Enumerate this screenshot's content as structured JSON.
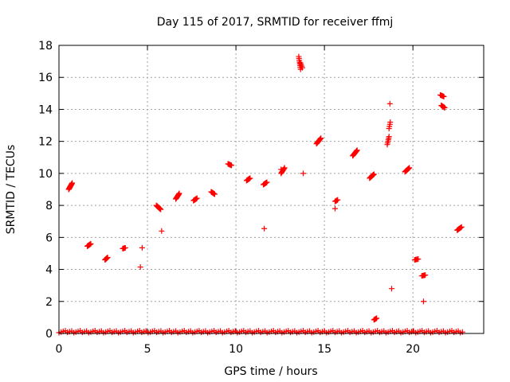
{
  "chart_data": {
    "type": "scatter",
    "title": "Day 115 of 2017, SRMTID for receiver ffmj",
    "xlabel": "GPS time / hours",
    "ylabel": "SRMTID / TECUs",
    "xlim": [
      0,
      24
    ],
    "ylim": [
      0,
      18
    ],
    "xticks": [
      0,
      5,
      10,
      15,
      20
    ],
    "yticks": [
      0,
      2,
      4,
      6,
      8,
      10,
      12,
      14,
      16,
      18
    ],
    "grid": true,
    "marker": "plus",
    "color": "#ff0000",
    "baseline": {
      "y": 0.05,
      "x_start": 0.0,
      "x_end": 22.8,
      "step": 0.12
    },
    "clusters": [
      {
        "x0": 0.55,
        "x1": 0.75,
        "y0": 9.0,
        "y1": 9.4,
        "n": 14
      },
      {
        "x0": 1.6,
        "x1": 1.8,
        "y0": 5.45,
        "y1": 5.6,
        "n": 8
      },
      {
        "x0": 2.6,
        "x1": 2.75,
        "y0": 4.6,
        "y1": 4.75,
        "n": 7
      },
      {
        "x0": 3.6,
        "x1": 3.75,
        "y0": 5.3,
        "y1": 5.35,
        "n": 5
      },
      {
        "x0": 5.5,
        "x1": 5.75,
        "y0": 8.0,
        "y1": 7.75,
        "n": 12
      },
      {
        "x0": 6.6,
        "x1": 6.8,
        "y0": 8.4,
        "y1": 8.75,
        "n": 10
      },
      {
        "x0": 7.6,
        "x1": 7.8,
        "y0": 8.3,
        "y1": 8.45,
        "n": 7
      },
      {
        "x0": 8.6,
        "x1": 8.8,
        "y0": 8.85,
        "y1": 8.7,
        "n": 7
      },
      {
        "x0": 9.55,
        "x1": 9.75,
        "y0": 10.6,
        "y1": 10.5,
        "n": 7
      },
      {
        "x0": 10.6,
        "x1": 10.8,
        "y0": 9.55,
        "y1": 9.7,
        "n": 7
      },
      {
        "x0": 11.55,
        "x1": 11.75,
        "y0": 9.3,
        "y1": 9.45,
        "n": 7
      },
      {
        "x0": 12.55,
        "x1": 12.75,
        "y0": 10.0,
        "y1": 10.35,
        "n": 7
      },
      {
        "x0": 13.55,
        "x1": 13.65,
        "y0": 17.3,
        "y1": 16.5,
        "n": 8
      },
      {
        "x0": 13.65,
        "x1": 13.75,
        "y0": 16.9,
        "y1": 16.6,
        "n": 4
      },
      {
        "x0": 14.55,
        "x1": 14.8,
        "y0": 11.85,
        "y1": 12.2,
        "n": 10
      },
      {
        "x0": 15.6,
        "x1": 15.75,
        "y0": 8.25,
        "y1": 8.35,
        "n": 5
      },
      {
        "x0": 16.6,
        "x1": 16.85,
        "y0": 11.1,
        "y1": 11.45,
        "n": 10
      },
      {
        "x0": 17.55,
        "x1": 17.8,
        "y0": 9.7,
        "y1": 9.95,
        "n": 9
      },
      {
        "x0": 17.8,
        "x1": 17.95,
        "y0": 0.85,
        "y1": 0.95,
        "n": 5
      },
      {
        "x0": 18.55,
        "x1": 18.65,
        "y0": 11.8,
        "y1": 12.3,
        "n": 6
      },
      {
        "x0": 18.65,
        "x1": 18.72,
        "y0": 12.8,
        "y1": 13.2,
        "n": 4
      },
      {
        "x0": 19.55,
        "x1": 19.8,
        "y0": 10.1,
        "y1": 10.35,
        "n": 9
      },
      {
        "x0": 20.1,
        "x1": 20.3,
        "y0": 4.6,
        "y1": 4.65,
        "n": 5
      },
      {
        "x0": 20.5,
        "x1": 20.7,
        "y0": 3.6,
        "y1": 3.65,
        "n": 5
      },
      {
        "x0": 21.55,
        "x1": 21.75,
        "y0": 14.9,
        "y1": 14.8,
        "n": 6
      },
      {
        "x0": 21.6,
        "x1": 21.8,
        "y0": 14.25,
        "y1": 14.1,
        "n": 7
      },
      {
        "x0": 22.5,
        "x1": 22.75,
        "y0": 6.45,
        "y1": 6.65,
        "n": 8
      }
    ],
    "points": [
      [
        4.6,
        4.15
      ],
      [
        4.7,
        5.35
      ],
      [
        5.8,
        6.4
      ],
      [
        11.6,
        6.55
      ],
      [
        13.8,
        10.0
      ],
      [
        15.6,
        7.8
      ],
      [
        18.7,
        14.35
      ],
      [
        18.8,
        2.8
      ],
      [
        20.6,
        2.0
      ],
      [
        12.55,
        10.25
      ]
    ]
  }
}
